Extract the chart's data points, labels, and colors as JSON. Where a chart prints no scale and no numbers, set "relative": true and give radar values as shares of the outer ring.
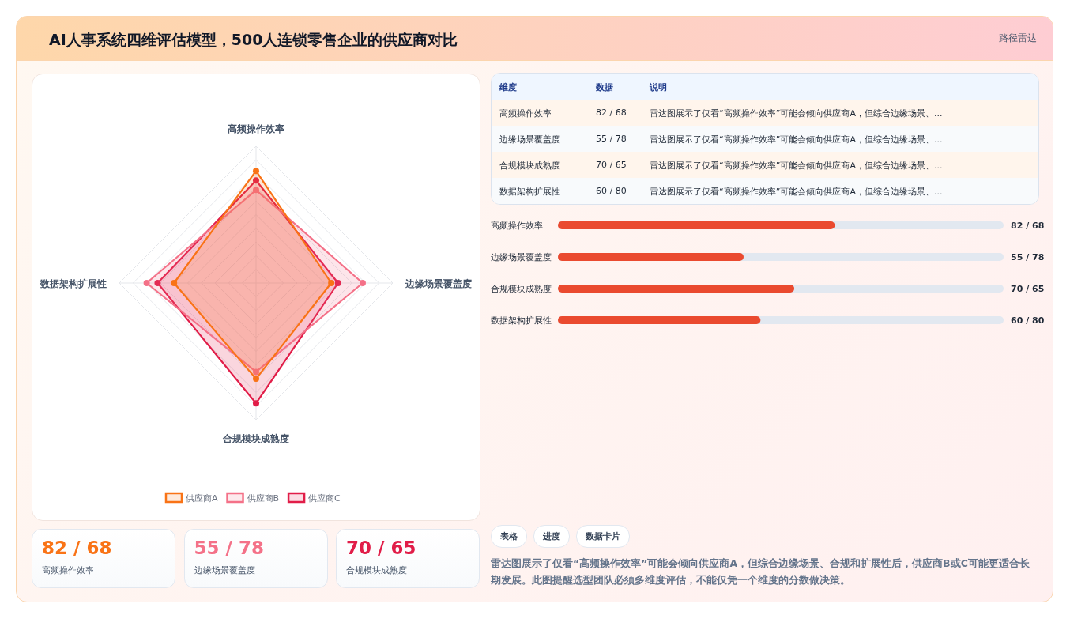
{
  "chart_data": [
    {
      "type": "other",
      "title": "AI人事系统四维评估模型，500人连锁零售企业的供应商对比",
      "subtitle": "路径雷达"
    },
    {
      "type": "radar",
      "categories": [
        "高频操作效率",
        "边缘场景覆盖度",
        "合规模块成熟度",
        "数据架构扩展性"
      ],
      "relative": true,
      "grid": true,
      "legend": "bottom",
      "marker": "circle",
      "series": [
        {
          "name": "供应商A",
          "color": "#f97316",
          "values": [
            0.82,
            0.55,
            0.7,
            0.6
          ]
        },
        {
          "name": "供应商B",
          "color": "#f47188",
          "values": [
            0.68,
            0.78,
            0.65,
            0.8
          ]
        },
        {
          "name": "供应商C",
          "color": "#e11d48",
          "values": [
            0.75,
            0.6,
            0.88,
            0.72
          ]
        }
      ]
    },
    {
      "type": "other",
      "categories": [
        "高频操作效率",
        "边缘场景覆盖度",
        "合规模块成熟度"
      ],
      "value_labels": [
        "82 / 68",
        "55 / 78",
        "70 / 65"
      ]
    },
    {
      "type": "other",
      "categories": [
        "高频操作效率",
        "边缘场景覆盖度",
        "合规模块成熟度",
        "数据架构扩展性"
      ],
      "value_labels": [
        "82 / 68",
        "55 / 78",
        "70 / 65",
        "60 / 80"
      ],
      "annotations": [
        "维度",
        "数据",
        "说明",
        "雷达图展示了仅看“高频操作效率”可能会倾向供应商A，但综合边缘场景、...",
        "雷达图展示了仅看“高频操作效率”可能会倾向供应商A，但综合边缘场景、...",
        "雷达图展示了仅看“高频操作效率”可能会倾向供应商A，但综合边缘场景、...",
        "雷达图展示了仅看“高频操作效率”可能会倾向供应商A，但综合边缘场景、..."
      ]
    },
    {
      "type": "bar",
      "orientation": "horizontal",
      "categories": [
        "高频操作效率",
        "边缘场景覆盖度",
        "合规模块成熟度",
        "数据架构扩展性"
      ],
      "values": [
        82,
        55,
        70,
        60
      ],
      "value_labels": [
        "82 / 68",
        "55 / 78",
        "70 / 65",
        "60 / 80"
      ],
      "color": "#ea4a2f",
      "xlim": [
        0,
        132
      ]
    },
    {
      "type": "other",
      "annotations": [
        "表格",
        "进度",
        "数据卡片",
        "雷达图展示了仅看“高频操作效率”可能会倾向供应商A，但综合边缘场景、合规和扩展性后，供应商B或C可能更适合长期发展。此图提醒选型团队必须多维度评估，不能仅凭一个维度的分数做决策。"
      ]
    }
  ]
}
